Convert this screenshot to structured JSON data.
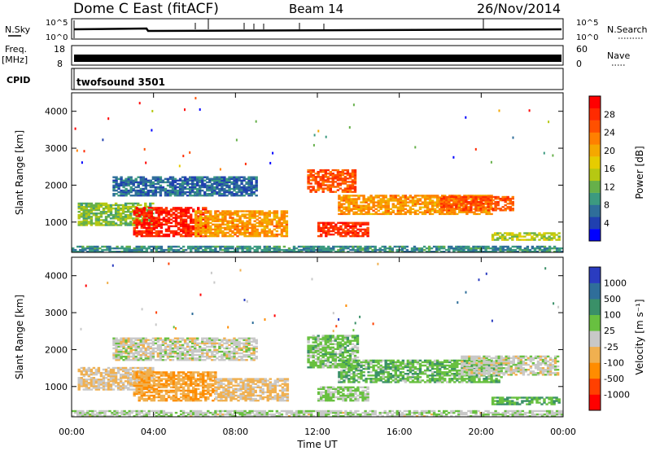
{
  "header": {
    "station": "Dome C East (fitACF)",
    "beam": "Beam 14",
    "date": "26/Nov/2014"
  },
  "top_panels": {
    "nsky_label": "N.Sky",
    "nsearch_label": "N.Search",
    "noise_ticks": [
      "10^5",
      "10^0"
    ],
    "freq_label": "Freq.",
    "freq_unit": "[MHz]",
    "freq_ticks": [
      "18",
      "8"
    ],
    "nave_label": "Nave",
    "nave_ticks": [
      "60",
      "0"
    ],
    "cpid_label": "CPID",
    "cpid_value": "twofsound 3501"
  },
  "colorbars": {
    "power": {
      "label": "Power [dB]",
      "ticks": [
        "28",
        "24",
        "20",
        "16",
        "12",
        "8",
        "4"
      ],
      "colors": [
        "#0000ff",
        "#2040b0",
        "#2f6e9a",
        "#3c9a80",
        "#66b04a",
        "#b6c812",
        "#e6cc00",
        "#f5a800",
        "#ff8000",
        "#ff5000",
        "#ff2a00",
        "#ff0000"
      ]
    },
    "velocity": {
      "label": "Velocity [m s⁻¹]",
      "ticks": [
        "1000",
        "500",
        "100",
        "25",
        "-25",
        "-100",
        "-500",
        "-1000"
      ],
      "colors": [
        "#2a3cc0",
        "#2f6e9a",
        "#3a9068",
        "#68c040",
        "#c8c8c8",
        "#f0b050",
        "#ff8c00",
        "#ff4000",
        "#ff0000"
      ]
    }
  },
  "axes": {
    "ylabel": "Slant Range [km]",
    "yticks": [
      "4000",
      "3000",
      "2000",
      "1000"
    ],
    "xlabel": "Time UT",
    "xticks": [
      "00:00",
      "04:00",
      "08:00",
      "12:00",
      "16:00",
      "20:00",
      "00:00"
    ]
  },
  "chart_data": [
    {
      "type": "heatmap",
      "quantity": "Power [dB]",
      "xlim_hours": [
        0,
        24
      ],
      "ylim_km": [
        180,
        4500
      ],
      "clim": [
        0,
        30
      ],
      "regions": [
        {
          "t0": 0.3,
          "t1": 4.0,
          "r0": 900,
          "r1": 1500,
          "value": 12
        },
        {
          "t0": 3.0,
          "t1": 6.5,
          "r0": 600,
          "r1": 1400,
          "value": 27
        },
        {
          "t0": 2.0,
          "t1": 9.0,
          "r0": 1700,
          "r1": 2200,
          "value": 6
        },
        {
          "t0": 6.0,
          "t1": 10.5,
          "r0": 600,
          "r1": 1300,
          "value": 20
        },
        {
          "t0": 11.5,
          "t1": 13.8,
          "r0": 1800,
          "r1": 2400,
          "value": 24
        },
        {
          "t0": 12.0,
          "t1": 14.5,
          "r0": 600,
          "r1": 1000,
          "value": 26
        },
        {
          "t0": 13.0,
          "t1": 20.5,
          "r0": 1200,
          "r1": 1700,
          "value": 20
        },
        {
          "t0": 18.0,
          "t1": 21.5,
          "r0": 1300,
          "r1": 1700,
          "value": 24
        },
        {
          "t0": 20.5,
          "t1": 23.8,
          "r0": 500,
          "r1": 700,
          "value": 14
        },
        {
          "t0": 0.0,
          "t1": 24.0,
          "r0": 180,
          "r1": 320,
          "value": 8
        }
      ]
    },
    {
      "type": "heatmap",
      "quantity": "Velocity [m s-1]",
      "xlim_hours": [
        0,
        24
      ],
      "ylim_km": [
        180,
        4500
      ],
      "clim": [
        -1000,
        1000
      ],
      "regions": [
        {
          "t0": 0.3,
          "t1": 4.0,
          "r0": 900,
          "r1": 1500,
          "value": -100
        },
        {
          "t0": 3.0,
          "t1": 7.0,
          "r0": 600,
          "r1": 1400,
          "value": -300
        },
        {
          "t0": 2.0,
          "t1": 9.0,
          "r0": 1700,
          "r1": 2300,
          "value": 0
        },
        {
          "t0": 7.0,
          "t1": 10.5,
          "r0": 600,
          "r1": 1200,
          "value": -150
        },
        {
          "t0": 11.5,
          "t1": 14.0,
          "r0": 1500,
          "r1": 2400,
          "value": 200
        },
        {
          "t0": 12.0,
          "t1": 14.5,
          "r0": 600,
          "r1": 1000,
          "value": 150
        },
        {
          "t0": 13.0,
          "t1": 21.0,
          "r0": 1100,
          "r1": 1700,
          "value": 250
        },
        {
          "t0": 19.0,
          "t1": 23.8,
          "r0": 1300,
          "r1": 1800,
          "value": 0
        },
        {
          "t0": 20.5,
          "t1": 23.8,
          "r0": 500,
          "r1": 700,
          "value": 300
        },
        {
          "t0": 0.0,
          "t1": 24.0,
          "r0": 180,
          "r1": 320,
          "value": 60
        }
      ]
    }
  ]
}
